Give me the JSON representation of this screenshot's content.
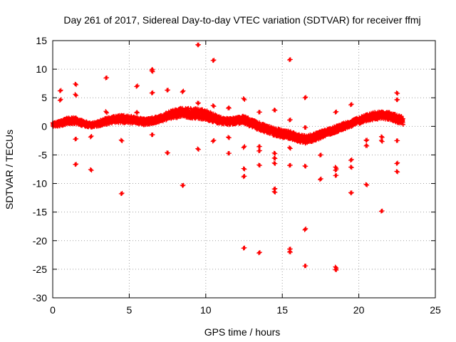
{
  "chart_data": {
    "type": "scatter",
    "title": "Day 261 of 2017, Sidereal Day-to-day VTEC variation (SDTVAR) for receiver ffmj",
    "xlabel": "GPS time / hours",
    "ylabel": "SDTVAR / TECUs",
    "xlim": [
      0,
      25
    ],
    "ylim": [
      -30,
      15
    ],
    "xticks": [
      0,
      5,
      10,
      15,
      20,
      25
    ],
    "yticks": [
      -30,
      -25,
      -20,
      -15,
      -10,
      -5,
      0,
      5,
      10,
      15
    ],
    "grid": true,
    "marker": "+",
    "color": "#ff0000",
    "dense_band": {
      "x": [
        0.0,
        0.5,
        1.0,
        1.5,
        2.0,
        2.5,
        3.0,
        3.5,
        4.0,
        4.5,
        5.0,
        5.5,
        6.0,
        6.5,
        7.0,
        7.5,
        8.0,
        8.5,
        9.0,
        9.5,
        10.0,
        10.5,
        11.0,
        11.5,
        12.0,
        12.5,
        13.0,
        13.5,
        14.0,
        14.5,
        15.0,
        15.5,
        16.0,
        16.5,
        17.0,
        17.5,
        18.0,
        18.5,
        19.0,
        19.5,
        20.0,
        20.5,
        21.0,
        21.5,
        22.0,
        22.5,
        22.9
      ],
      "y": [
        0.3,
        0.5,
        1.0,
        1.0,
        0.5,
        0.2,
        0.5,
        0.9,
        1.2,
        1.3,
        1.2,
        1.0,
        0.8,
        1.0,
        1.3,
        1.8,
        2.2,
        2.5,
        2.3,
        2.2,
        2.0,
        1.5,
        1.0,
        0.8,
        1.0,
        1.2,
        0.5,
        0.0,
        -0.5,
        -1.0,
        -1.3,
        -1.5,
        -2.0,
        -2.3,
        -2.0,
        -1.5,
        -1.0,
        -0.5,
        0.0,
        0.5,
        1.0,
        1.5,
        1.8,
        2.0,
        1.8,
        1.3,
        1.0
      ],
      "spread": [
        0.8,
        1.0,
        1.2,
        1.2,
        1.0,
        0.8,
        1.0,
        1.2,
        1.2,
        1.4,
        1.4,
        1.2,
        1.2,
        1.2,
        1.2,
        1.4,
        1.6,
        1.6,
        1.8,
        1.8,
        1.8,
        1.6,
        1.2,
        1.2,
        1.2,
        1.4,
        1.4,
        1.4,
        1.4,
        1.4,
        1.4,
        1.4,
        1.4,
        1.4,
        1.4,
        1.4,
        1.2,
        1.2,
        1.2,
        1.2,
        1.2,
        1.2,
        1.4,
        1.4,
        1.4,
        1.4,
        1.4
      ]
    },
    "outliers": [
      {
        "x": 0.5,
        "y": 6.2
      },
      {
        "x": 0.5,
        "y": 4.6
      },
      {
        "x": 1.5,
        "y": 7.4
      },
      {
        "x": 1.5,
        "y": 5.5
      },
      {
        "x": 1.5,
        "y": -2.2
      },
      {
        "x": 1.5,
        "y": -6.7
      },
      {
        "x": 2.5,
        "y": -1.8
      },
      {
        "x": 2.5,
        "y": -7.6
      },
      {
        "x": 3.5,
        "y": 8.5
      },
      {
        "x": 3.5,
        "y": 2.5
      },
      {
        "x": 4.5,
        "y": -2.5
      },
      {
        "x": 4.5,
        "y": -11.8
      },
      {
        "x": 5.5,
        "y": 7.0
      },
      {
        "x": 5.5,
        "y": 2.5
      },
      {
        "x": 6.5,
        "y": 10.0
      },
      {
        "x": 6.5,
        "y": 9.7
      },
      {
        "x": 6.5,
        "y": 5.8
      },
      {
        "x": 6.5,
        "y": -1.5
      },
      {
        "x": 7.5,
        "y": 6.3
      },
      {
        "x": 7.5,
        "y": -4.7
      },
      {
        "x": 8.5,
        "y": 6.1
      },
      {
        "x": 8.5,
        "y": -10.4
      },
      {
        "x": 9.5,
        "y": 14.2
      },
      {
        "x": 9.5,
        "y": 4.0
      },
      {
        "x": 9.5,
        "y": -4.0
      },
      {
        "x": 10.5,
        "y": 11.5
      },
      {
        "x": 10.5,
        "y": 3.6
      },
      {
        "x": 10.5,
        "y": -2.5
      },
      {
        "x": 11.5,
        "y": 3.3
      },
      {
        "x": 11.5,
        "y": -2.0
      },
      {
        "x": 11.5,
        "y": -4.7
      },
      {
        "x": 12.5,
        "y": 4.8
      },
      {
        "x": 12.5,
        "y": -3.6
      },
      {
        "x": 12.5,
        "y": -7.4
      },
      {
        "x": 12.5,
        "y": -8.7
      },
      {
        "x": 12.5,
        "y": -21.3
      },
      {
        "x": 13.5,
        "y": 2.5
      },
      {
        "x": 13.5,
        "y": -3.5
      },
      {
        "x": 13.5,
        "y": -4.3
      },
      {
        "x": 13.5,
        "y": -6.8
      },
      {
        "x": 13.5,
        "y": -22.1
      },
      {
        "x": 14.5,
        "y": 2.9
      },
      {
        "x": 14.5,
        "y": -4.7
      },
      {
        "x": 14.5,
        "y": -5.5
      },
      {
        "x": 14.5,
        "y": -6.5
      },
      {
        "x": 14.5,
        "y": -11.0
      },
      {
        "x": 14.5,
        "y": -11.5
      },
      {
        "x": 15.5,
        "y": 11.7
      },
      {
        "x": 15.5,
        "y": 1.1
      },
      {
        "x": 15.5,
        "y": -3.8
      },
      {
        "x": 15.5,
        "y": -6.8
      },
      {
        "x": 15.5,
        "y": -21.5
      },
      {
        "x": 15.5,
        "y": -21.9
      },
      {
        "x": 16.5,
        "y": 5.0
      },
      {
        "x": 16.5,
        "y": -0.2
      },
      {
        "x": 16.5,
        "y": -7.0
      },
      {
        "x": 16.5,
        "y": -18.0
      },
      {
        "x": 16.5,
        "y": -24.4
      },
      {
        "x": 17.5,
        "y": -5.0
      },
      {
        "x": 17.5,
        "y": -9.2
      },
      {
        "x": 18.5,
        "y": 2.5
      },
      {
        "x": 18.5,
        "y": -7.2
      },
      {
        "x": 18.5,
        "y": -7.6
      },
      {
        "x": 18.5,
        "y": -8.6
      },
      {
        "x": 18.5,
        "y": -24.7
      },
      {
        "x": 18.5,
        "y": -25.0
      },
      {
        "x": 19.5,
        "y": 3.8
      },
      {
        "x": 19.5,
        "y": -5.9
      },
      {
        "x": 19.5,
        "y": -7.1
      },
      {
        "x": 19.5,
        "y": -11.7
      },
      {
        "x": 20.5,
        "y": -2.5
      },
      {
        "x": 20.5,
        "y": -3.3
      },
      {
        "x": 20.5,
        "y": -10.2
      },
      {
        "x": 21.5,
        "y": -1.8
      },
      {
        "x": 21.5,
        "y": -2.6
      },
      {
        "x": 21.5,
        "y": -14.8
      },
      {
        "x": 22.5,
        "y": 5.8
      },
      {
        "x": 22.5,
        "y": 4.6
      },
      {
        "x": 22.5,
        "y": -2.5
      },
      {
        "x": 22.5,
        "y": -6.5
      },
      {
        "x": 22.5,
        "y": -7.9
      }
    ]
  }
}
